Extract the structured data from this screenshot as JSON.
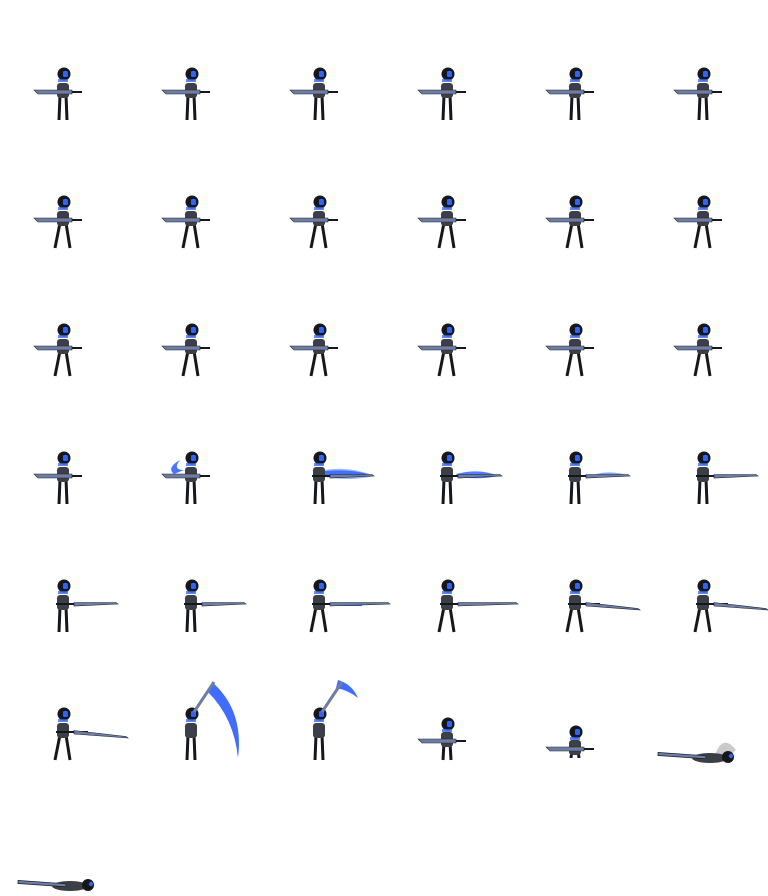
{
  "sprite_sheet": {
    "columns": 6,
    "rows": 7,
    "palette": {
      "body": "#3c3f46",
      "dark": "#15171c",
      "visor": "#2f63ff",
      "blade": "#6f7ea0",
      "blade_edge": "#1c2436",
      "slash": "#2b5cff",
      "slash_light": "#8fb0ff",
      "dust": "#bdbdbd"
    },
    "frames": [
      {
        "pose": "idle",
        "effect": "none"
      },
      {
        "pose": "idle",
        "effect": "none"
      },
      {
        "pose": "idle",
        "effect": "none"
      },
      {
        "pose": "idle",
        "effect": "none"
      },
      {
        "pose": "idle",
        "effect": "none"
      },
      {
        "pose": "idle",
        "effect": "none"
      },
      {
        "pose": "walk",
        "effect": "none"
      },
      {
        "pose": "walk",
        "effect": "none"
      },
      {
        "pose": "walk",
        "effect": "none"
      },
      {
        "pose": "walk",
        "effect": "none"
      },
      {
        "pose": "walk",
        "effect": "none"
      },
      {
        "pose": "walk",
        "effect": "none"
      },
      {
        "pose": "walk",
        "effect": "none"
      },
      {
        "pose": "walk",
        "effect": "none"
      },
      {
        "pose": "walk",
        "effect": "none"
      },
      {
        "pose": "walk",
        "effect": "none"
      },
      {
        "pose": "walk",
        "effect": "none"
      },
      {
        "pose": "walk",
        "effect": "none"
      },
      {
        "pose": "idle",
        "effect": "none"
      },
      {
        "pose": "swing-back",
        "effect": "slash-small"
      },
      {
        "pose": "swing-front",
        "effect": "slash-wide"
      },
      {
        "pose": "swing-front",
        "effect": "slash-medium"
      },
      {
        "pose": "swing-front",
        "effect": "slash-fade"
      },
      {
        "pose": "swing-front",
        "effect": "none"
      },
      {
        "pose": "thrust",
        "effect": "none"
      },
      {
        "pose": "thrust",
        "effect": "none"
      },
      {
        "pose": "thrust-long",
        "effect": "slash-streak"
      },
      {
        "pose": "thrust-long",
        "effect": "slash-streak-small"
      },
      {
        "pose": "lunge",
        "effect": "none"
      },
      {
        "pose": "lunge",
        "effect": "none"
      },
      {
        "pose": "lunge",
        "effect": "none"
      },
      {
        "pose": "overhead",
        "effect": "arc-large"
      },
      {
        "pose": "overhead",
        "effect": "arc-small"
      },
      {
        "pose": "crouch",
        "effect": "none"
      },
      {
        "pose": "kneel",
        "effect": "none"
      },
      {
        "pose": "fallen",
        "effect": "dust"
      },
      {
        "pose": "fallen",
        "effect": "none"
      },
      {
        "pose": "empty",
        "effect": "none"
      },
      {
        "pose": "empty",
        "effect": "none"
      },
      {
        "pose": "empty",
        "effect": "none"
      },
      {
        "pose": "empty",
        "effect": "none"
      },
      {
        "pose": "empty",
        "effect": "none"
      }
    ]
  }
}
